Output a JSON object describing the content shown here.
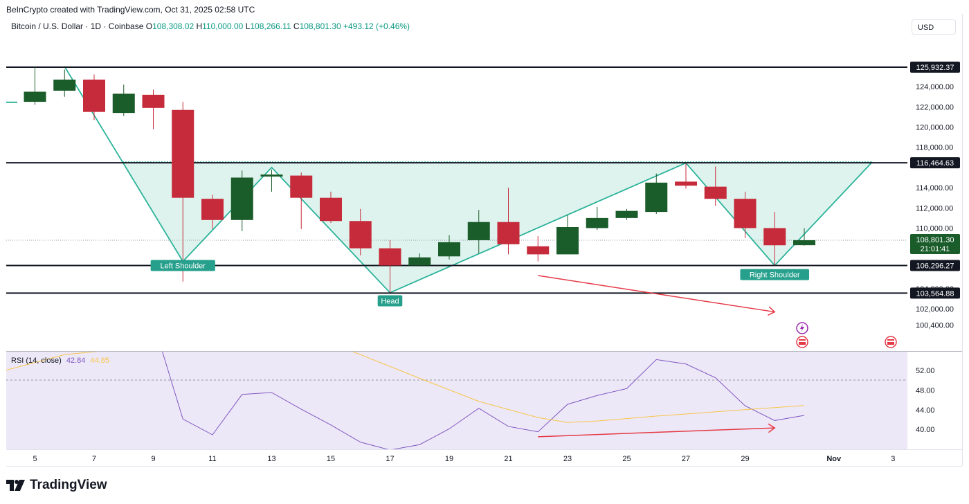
{
  "header": {
    "attribution": "BeInCrypto created with TradingView.com, Oct 31, 2025 02:58 UTC",
    "symbol": "Bitcoin / U.S. Dollar · 1D · Coinbase",
    "open_label": "O",
    "open": "108,308.02",
    "high_label": "H",
    "high": "110,000.00",
    "low_label": "L",
    "low": "108,266.11",
    "close_label": "C",
    "close": "108,801.30",
    "change": "+493.12 (+0.46%)",
    "currency": "USD"
  },
  "rsi_legend": {
    "title": "RSI (14, close)",
    "rsi": "42.84",
    "ma": "44.85"
  },
  "logo_text": "TradingView",
  "colors": {
    "up": "#1a5c2a",
    "down": "#c62b3b",
    "pattern": "#2bb39a",
    "pattern_fill": "#d8f1ea",
    "rsi": "#7e57c2",
    "rsi_ma": "#f7c548",
    "arrow": "#e53946",
    "rsi_bg": "#ede8f7"
  },
  "chart_data": {
    "type": "candlestick",
    "x_ticks": [
      {
        "day": 5,
        "label": "5"
      },
      {
        "day": 7,
        "label": "7"
      },
      {
        "day": 9,
        "label": "9"
      },
      {
        "day": 11,
        "label": "11"
      },
      {
        "day": 13,
        "label": "13"
      },
      {
        "day": 15,
        "label": "15"
      },
      {
        "day": 17,
        "label": "17"
      },
      {
        "day": 19,
        "label": "19"
      },
      {
        "day": 21,
        "label": "21"
      },
      {
        "day": 23,
        "label": "23"
      },
      {
        "day": 25,
        "label": "25"
      },
      {
        "day": 27,
        "label": "27"
      },
      {
        "day": 29,
        "label": "29"
      },
      {
        "day": 32,
        "label": "Nov"
      },
      {
        "day": 34,
        "label": "3"
      }
    ],
    "price_ticks": [
      "124,000.00",
      "122,000.00",
      "120,000.00",
      "118,000.00",
      "114,000.00",
      "112,000.00",
      "110,000.00",
      "104,000.00",
      "102,000.00",
      "100,400.00"
    ],
    "candles": [
      {
        "day": 5,
        "o": 122500,
        "h": 125950,
        "l": 122200,
        "c": 123500
      },
      {
        "day": 6,
        "o": 123600,
        "h": 125700,
        "l": 123000,
        "c": 124700
      },
      {
        "day": 7,
        "o": 124700,
        "h": 125200,
        "l": 120700,
        "c": 121500
      },
      {
        "day": 8,
        "o": 121400,
        "h": 124200,
        "l": 121100,
        "c": 123300
      },
      {
        "day": 9,
        "o": 123200,
        "h": 123700,
        "l": 119800,
        "c": 121900
      },
      {
        "day": 10,
        "o": 121700,
        "h": 122500,
        "l": 104700,
        "c": 113000
      },
      {
        "day": 11,
        "o": 112900,
        "h": 113300,
        "l": 109900,
        "c": 110800
      },
      {
        "day": 12,
        "o": 110800,
        "h": 115700,
        "l": 109700,
        "c": 115000
      },
      {
        "day": 13,
        "o": 115100,
        "h": 115800,
        "l": 113600,
        "c": 115300
      },
      {
        "day": 14,
        "o": 115200,
        "h": 115500,
        "l": 109900,
        "c": 113000
      },
      {
        "day": 15,
        "o": 113000,
        "h": 113600,
        "l": 110500,
        "c": 110700
      },
      {
        "day": 16,
        "o": 110700,
        "h": 111900,
        "l": 107300,
        "c": 108000
      },
      {
        "day": 17,
        "o": 108000,
        "h": 108800,
        "l": 103600,
        "c": 106300
      },
      {
        "day": 18,
        "o": 106300,
        "h": 107500,
        "l": 106200,
        "c": 107100
      },
      {
        "day": 19,
        "o": 107200,
        "h": 109300,
        "l": 106900,
        "c": 108600
      },
      {
        "day": 20,
        "o": 108800,
        "h": 111800,
        "l": 107500,
        "c": 110600
      },
      {
        "day": 21,
        "o": 110600,
        "h": 114000,
        "l": 107400,
        "c": 108400
      },
      {
        "day": 22,
        "o": 108200,
        "h": 109200,
        "l": 106700,
        "c": 107400
      },
      {
        "day": 23,
        "o": 107400,
        "h": 111300,
        "l": 107400,
        "c": 110100
      },
      {
        "day": 24,
        "o": 110000,
        "h": 112100,
        "l": 109800,
        "c": 111000
      },
      {
        "day": 25,
        "o": 111000,
        "h": 111900,
        "l": 110800,
        "c": 111700
      },
      {
        "day": 26,
        "o": 111600,
        "h": 115400,
        "l": 111400,
        "c": 114500
      },
      {
        "day": 27,
        "o": 114600,
        "h": 116400,
        "l": 113900,
        "c": 114200
      },
      {
        "day": 28,
        "o": 114100,
        "h": 116100,
        "l": 112200,
        "c": 112900
      },
      {
        "day": 29,
        "o": 112900,
        "h": 113600,
        "l": 109000,
        "c": 110000
      },
      {
        "day": 30,
        "o": 110000,
        "h": 111600,
        "l": 106300,
        "c": 108300
      },
      {
        "day": 31,
        "o": 108308.02,
        "h": 110000.0,
        "l": 108266.11,
        "c": 108801.3
      }
    ],
    "levels": [
      {
        "value": 125932.37,
        "label": "125,932.37"
      },
      {
        "value": 116464.63,
        "label": "116,464.63"
      },
      {
        "value": 106296.27,
        "label": "106,296.27"
      },
      {
        "value": 103564.88,
        "label": "103,564.88"
      }
    ],
    "current_price": {
      "value": 108801.3,
      "label": "108,801.30",
      "countdown": "21:01:41"
    },
    "pattern": {
      "points": [
        {
          "day": 6,
          "price": 126000
        },
        {
          "day": 10,
          "price": 106700
        },
        {
          "day": 13,
          "price": 116000
        },
        {
          "day": 17,
          "price": 103600
        },
        {
          "day": 27,
          "price": 116450
        },
        {
          "day": 30,
          "price": 106300
        },
        {
          "day": 33.3,
          "price": 116550
        }
      ],
      "labels": [
        {
          "text": "Left Shoulder",
          "day": 10,
          "price": 106300
        },
        {
          "text": "Head",
          "day": 17,
          "price": 102800
        },
        {
          "text": "Right Shoulder",
          "day": 30,
          "price": 105400
        }
      ]
    },
    "price_arrow": {
      "from": {
        "day": 22,
        "price": 105300
      },
      "to": {
        "day": 30,
        "price": 101700
      }
    },
    "rsi": {
      "ticks": [
        "52.00",
        "48.00",
        "44.00",
        "40.00"
      ],
      "values": [
        {
          "day": 10,
          "v": 42.1
        },
        {
          "day": 11,
          "v": 38.9
        },
        {
          "day": 12,
          "v": 47.1
        },
        {
          "day": 13,
          "v": 47.5
        },
        {
          "day": 14,
          "v": 44.1
        },
        {
          "day": 15,
          "v": 40.9
        },
        {
          "day": 16,
          "v": 37.4
        },
        {
          "day": 17,
          "v": 35.8
        },
        {
          "day": 18,
          "v": 36.9
        },
        {
          "day": 19,
          "v": 40.1
        },
        {
          "day": 20,
          "v": 44.3
        },
        {
          "day": 21,
          "v": 40.6
        },
        {
          "day": 22,
          "v": 39.5
        },
        {
          "day": 23,
          "v": 45.1
        },
        {
          "day": 24,
          "v": 46.9
        },
        {
          "day": 25,
          "v": 48.3
        },
        {
          "day": 26,
          "v": 54.2
        },
        {
          "day": 27,
          "v": 53.3
        },
        {
          "day": 28,
          "v": 50.5
        },
        {
          "day": 29,
          "v": 44.8
        },
        {
          "day": 30,
          "v": 41.8
        },
        {
          "day": 31,
          "v": 42.84
        }
      ],
      "ma": [
        {
          "day": 4,
          "v": 52.0
        },
        {
          "day": 6,
          "v": 55.2
        },
        {
          "day": 14,
          "v": 60.0
        },
        {
          "day": 18,
          "v": 50.4
        },
        {
          "day": 20,
          "v": 45.7
        },
        {
          "day": 22,
          "v": 42.4
        },
        {
          "day": 23,
          "v": 41.4
        },
        {
          "day": 24,
          "v": 41.7
        },
        {
          "day": 26,
          "v": 42.7
        },
        {
          "day": 29,
          "v": 44.0
        },
        {
          "day": 31,
          "v": 44.85
        }
      ],
      "arrow": {
        "from": {
          "day": 22,
          "v": 38.5
        },
        "to": {
          "day": 30,
          "v": 40.3
        }
      }
    }
  }
}
